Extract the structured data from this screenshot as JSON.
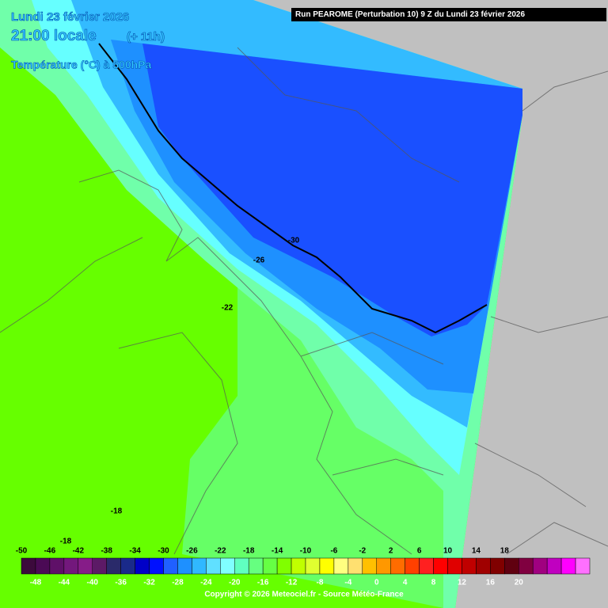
{
  "header": {
    "date": "Lundi 23 février 2026",
    "time": "21:00 locale",
    "lead": "(+ 11h)",
    "variable": "Température (°C) à 500hPa",
    "run": "Run PEAROME (Perturbation 10) 9 Z du Lundi 23 février 2026"
  },
  "contour_labels": [
    "-30",
    "-26",
    "-22",
    "-18",
    "-18"
  ],
  "legend": {
    "top_labels": [
      -50,
      -46,
      -42,
      -38,
      -34,
      -30,
      -26,
      -22,
      -18,
      -14,
      -10,
      -6,
      -2,
      2,
      6,
      10,
      14,
      18
    ],
    "bottom_labels": [
      -48,
      -44,
      -40,
      -36,
      -32,
      -28,
      -24,
      -20,
      -16,
      -12,
      -8,
      -4,
      0,
      4,
      8,
      12,
      16,
      20
    ],
    "colors": [
      "#3c0a3c",
      "#4b0a55",
      "#5f1068",
      "#73187c",
      "#861c88",
      "#5c1a66",
      "#2a2a6a",
      "#1a2a8a",
      "#0000c8",
      "#0010ff",
      "#2060ff",
      "#1e90ff",
      "#30b8ff",
      "#60e0ff",
      "#80ffff",
      "#60ffc0",
      "#66ff80",
      "#66ff44",
      "#80ff00",
      "#c0ff00",
      "#e0ff30",
      "#ffff00",
      "#ffff80",
      "#ffe070",
      "#ffc000",
      "#ff9800",
      "#ff6c00",
      "#ff4000",
      "#ff2020",
      "#ff0000",
      "#e00000",
      "#c00000",
      "#a00000",
      "#800000",
      "#600010",
      "#800040",
      "#a00080",
      "#c000c0",
      "#ff00ff",
      "#ff70ff"
    ]
  },
  "footer": {
    "copyright": "Copyright © 2026 Meteociel.fr - Source Météo-France"
  }
}
